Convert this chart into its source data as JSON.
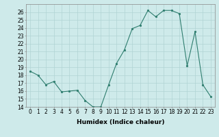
{
  "x": [
    0,
    1,
    2,
    3,
    4,
    5,
    6,
    7,
    8,
    9,
    10,
    11,
    12,
    13,
    14,
    15,
    16,
    17,
    18,
    19,
    20,
    21,
    22,
    23
  ],
  "y": [
    18.5,
    18.0,
    16.8,
    17.2,
    15.9,
    16.0,
    16.1,
    14.8,
    14.0,
    14.0,
    16.8,
    19.5,
    21.2,
    23.9,
    24.3,
    26.2,
    25.4,
    26.2,
    26.2,
    25.8,
    19.2,
    23.5,
    16.8,
    15.3
  ],
  "line_color": "#2e7d6e",
  "marker": "o",
  "marker_size": 1.8,
  "bg_color": "#ceeaea",
  "grid_color": "#b0d4d4",
  "xlabel": "Humidex (Indice chaleur)",
  "ylim": [
    14,
    27
  ],
  "xlim": [
    -0.5,
    23.5
  ],
  "yticks": [
    14,
    15,
    16,
    17,
    18,
    19,
    20,
    21,
    22,
    23,
    24,
    25,
    26
  ],
  "xticks": [
    0,
    1,
    2,
    3,
    4,
    5,
    6,
    7,
    8,
    9,
    10,
    11,
    12,
    13,
    14,
    15,
    16,
    17,
    18,
    19,
    20,
    21,
    22,
    23
  ],
  "axis_fontsize": 5.5,
  "xlabel_fontsize": 6.5,
  "linewidth": 0.8
}
